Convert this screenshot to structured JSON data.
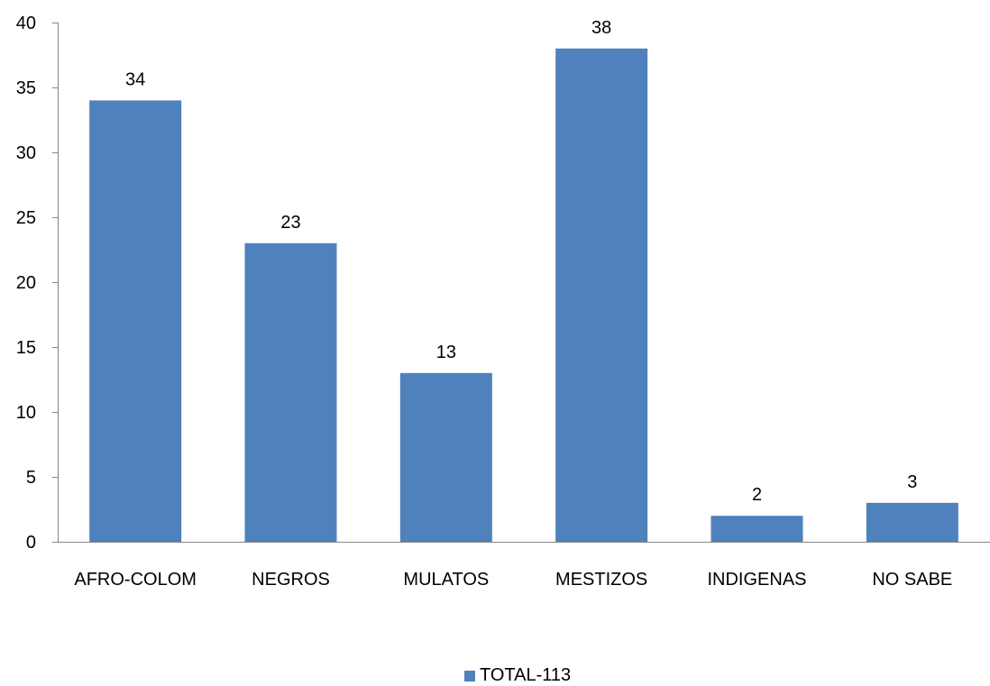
{
  "chart_data": {
    "type": "bar",
    "categories": [
      "AFRO-COLOM",
      "NEGROS",
      "MULATOS",
      "MESTIZOS",
      "INDIGENAS",
      "NO SABE"
    ],
    "series": [
      {
        "name": "TOTAL-113",
        "values": [
          34,
          23,
          13,
          38,
          2,
          3
        ],
        "color": "#4F81BD"
      }
    ],
    "ylim": [
      0,
      40
    ],
    "yticks": [
      0,
      5,
      10,
      15,
      20,
      25,
      30,
      35,
      40
    ],
    "data_labels": [
      "34",
      "23",
      "13",
      "38",
      "2",
      "3"
    ],
    "xlabel": "",
    "ylabel": "",
    "grid": false,
    "legend": {
      "position": "bottom",
      "entries": [
        "TOTAL-113"
      ]
    }
  }
}
